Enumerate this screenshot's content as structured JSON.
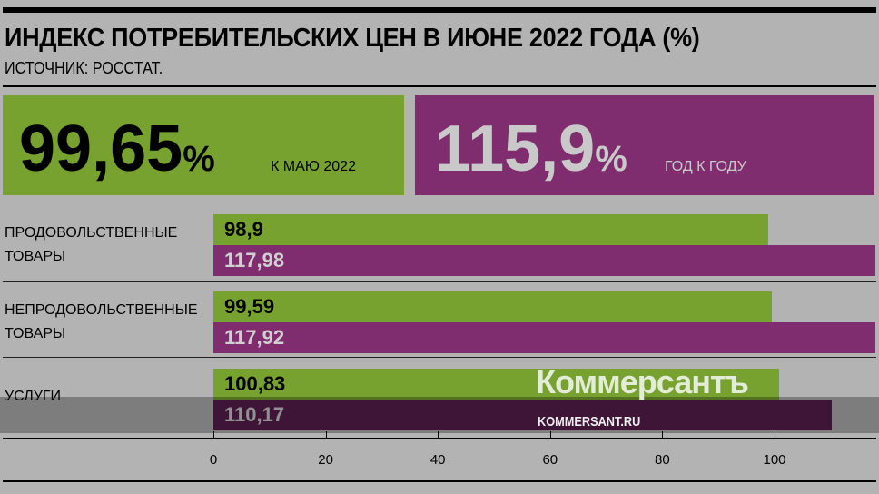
{
  "header": {
    "title": "ИНДЕКС ПОТРЕБИТЕЛЬСКИХ ЦЕН В ИЮНЕ 2022 ГОДА (%)",
    "source": "ИСТОЧНИК: РОССТАТ."
  },
  "summary": [
    {
      "value": "99,65",
      "unit": "%",
      "caption": "К МАЮ 2022"
    },
    {
      "value": "115,9",
      "unit": "%",
      "caption": "ГОД К ГОДУ"
    }
  ],
  "watermark": {
    "brand": "Коммерсантъ",
    "site": "KOMMERSANT.RU"
  },
  "chart_data": {
    "type": "bar",
    "orientation": "horizontal",
    "title": "ИНДЕКС ПОТРЕБИТЕЛЬСКИХ ЦЕН В ИЮНЕ 2022 ГОДА (%)",
    "categories": [
      "ПРОДОВОЛЬСТВЕННЫЕ\nТОВАРЫ",
      "НЕПРОДОВОЛЬСТВЕННЫЕ\nТОВАРЫ",
      "УСЛУГИ"
    ],
    "series": [
      {
        "name": "К МАЮ 2022",
        "color": "#77a22f",
        "values": [
          98.9,
          99.59,
          100.83
        ],
        "labels": [
          "98,9",
          "99,59",
          "100,83"
        ]
      },
      {
        "name": "ГОД К ГОДУ",
        "color": "#7f2d6e",
        "values": [
          117.98,
          117.92,
          110.17
        ],
        "labels": [
          "117,98",
          "117,92",
          "110,17"
        ]
      }
    ],
    "xlim": [
      0,
      118
    ],
    "xticks": [
      0,
      20,
      40,
      60,
      80,
      100
    ],
    "xtick_labels": [
      "0",
      "20",
      "40",
      "60",
      "80",
      "100"
    ]
  }
}
